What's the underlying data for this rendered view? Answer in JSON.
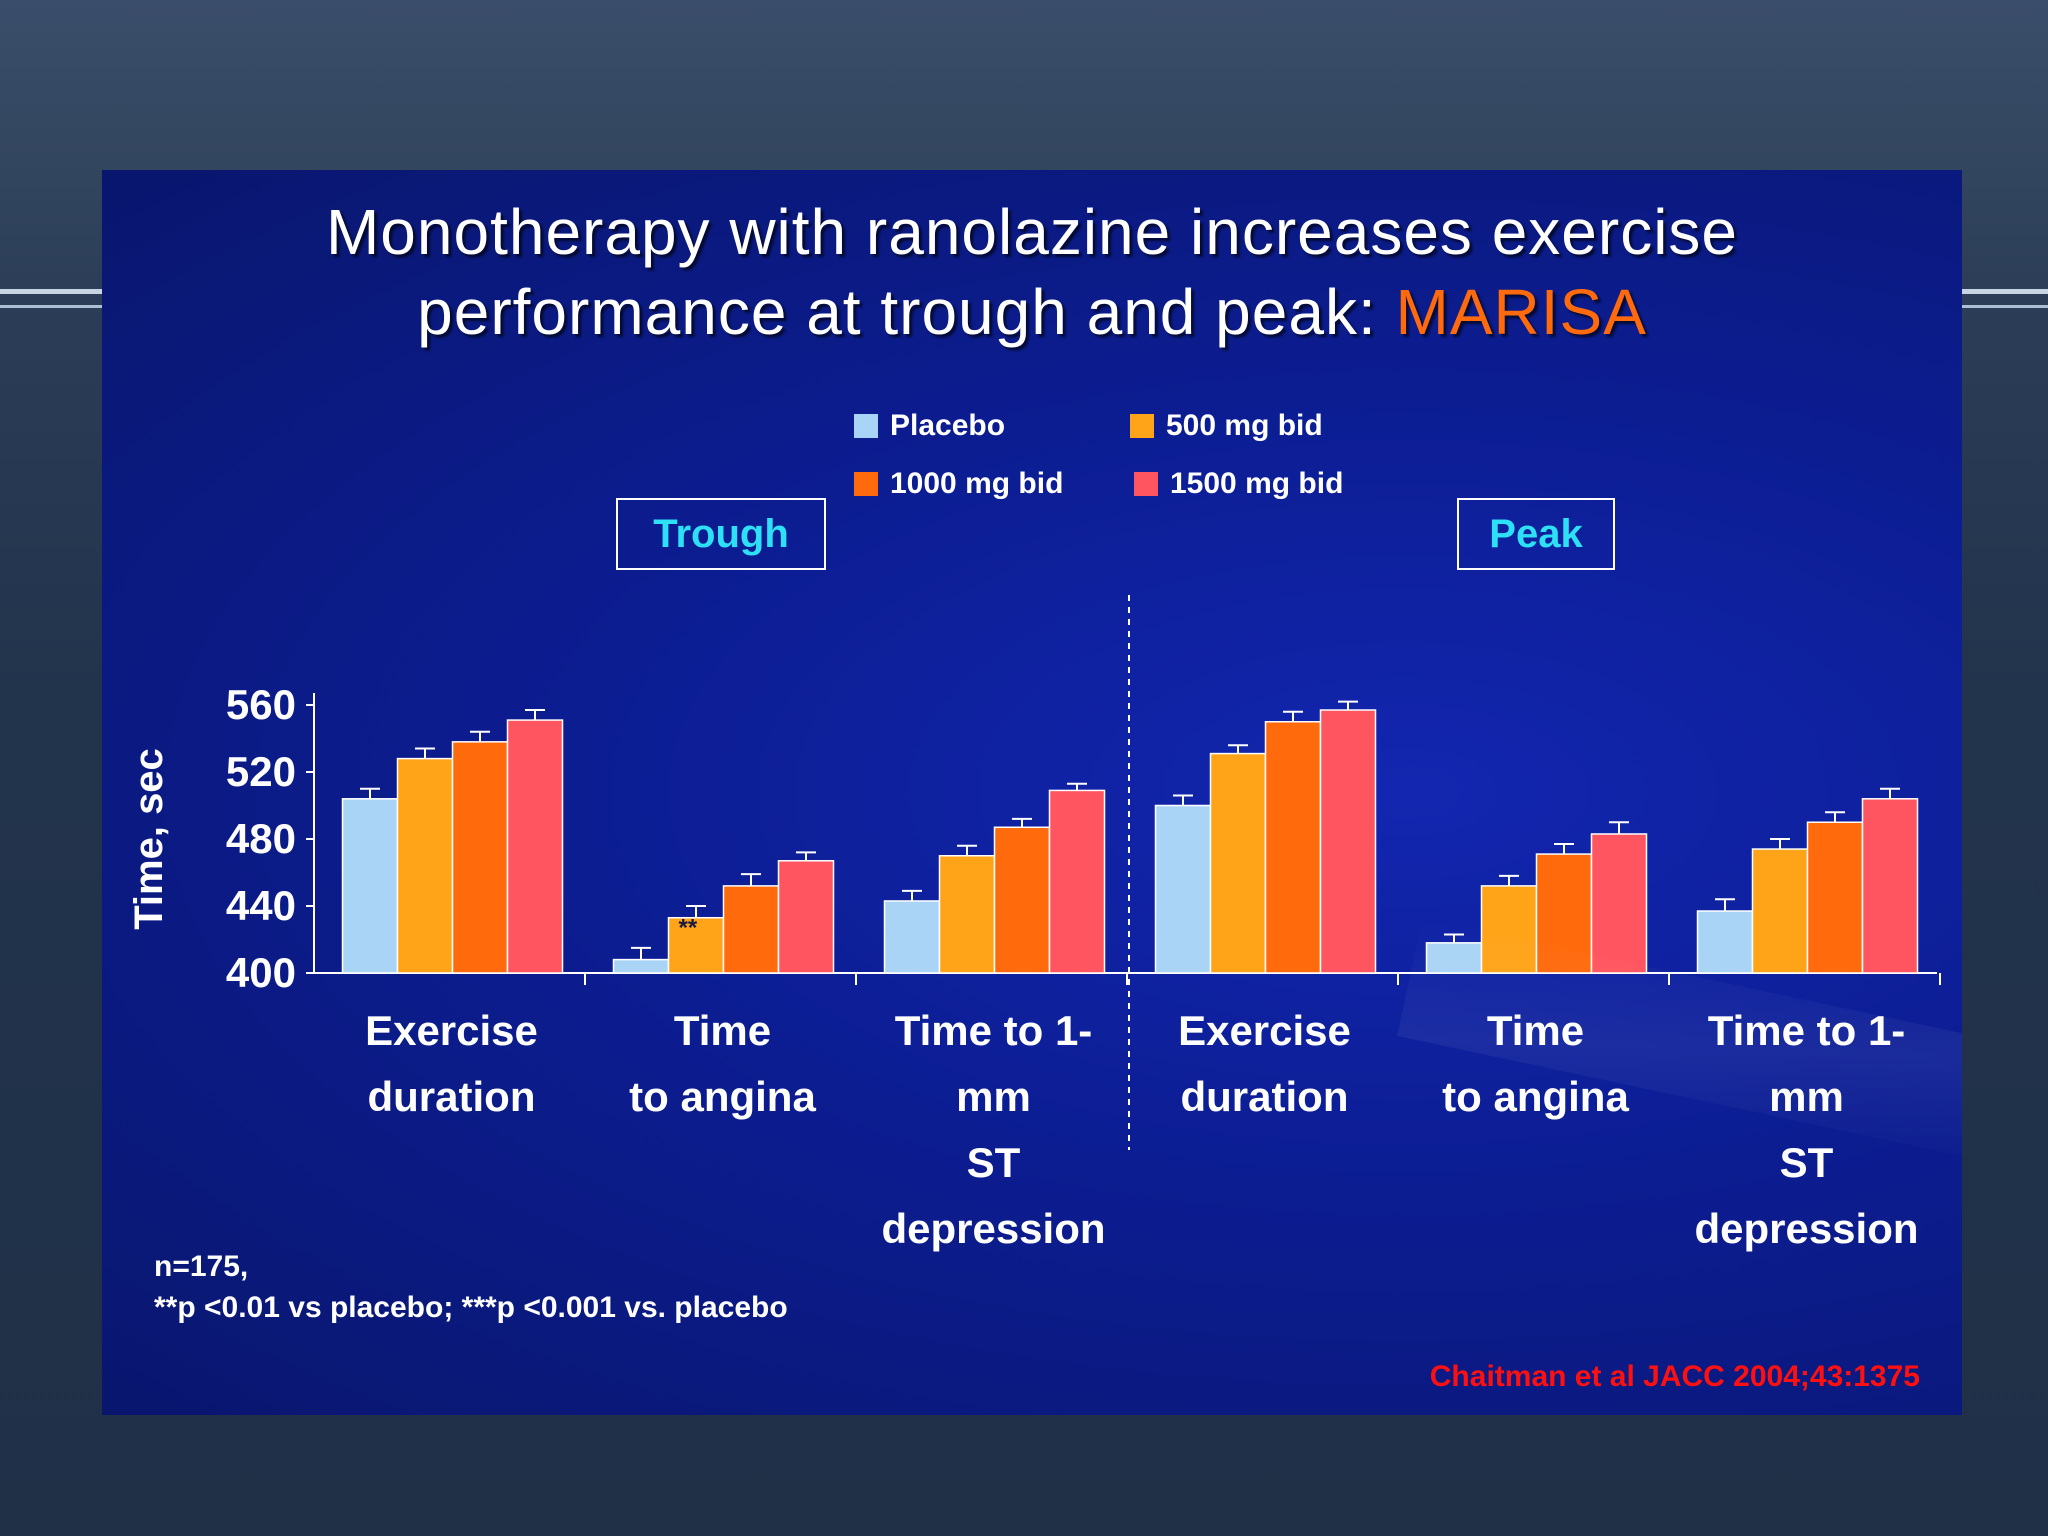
{
  "slide": {
    "title_line1": "Monotherapy with ranolazine increases exercise",
    "title_line2": "performance at trough and peak:",
    "title_accent": "MARISA",
    "panel_labels": [
      "Trough",
      "Peak"
    ],
    "footnote_n": "n=175,",
    "footnote_p": "**p <0.01 vs placebo;  ***p <0.001 vs. placebo",
    "citation": "Chaitman et al JACC 2004;43:1375"
  },
  "colors": {
    "placebo": "#aad4f5",
    "dose500": "#ffa319",
    "dose1000": "#ff6a0d",
    "dose1500": "#ff5560",
    "accent_title": "#ff6a0d",
    "panel_label": "#2de0f6",
    "citation": "#ff1010"
  },
  "chart_data": {
    "type": "bar",
    "ylabel": "Time, sec",
    "ylim": [
      400,
      560
    ],
    "yticks": [
      400,
      440,
      480,
      520,
      560
    ],
    "legend": [
      "Placebo",
      "500 mg bid",
      "1000 mg bid",
      "1500 mg bid"
    ],
    "legend_placement": "top-center",
    "groups": [
      {
        "panel": "Trough",
        "label": [
          "Exercise",
          "duration"
        ],
        "values": [
          504,
          528,
          538,
          551
        ],
        "errors": [
          6,
          6,
          6,
          6
        ]
      },
      {
        "panel": "Trough",
        "label": [
          "Time",
          "to angina"
        ],
        "values": [
          408,
          433,
          452,
          467
        ],
        "errors": [
          7,
          7,
          7,
          5
        ],
        "annotation": "**"
      },
      {
        "panel": "Trough",
        "label": [
          "Time to 1-",
          "mm",
          "ST",
          "depression"
        ],
        "values": [
          443,
          470,
          487,
          509
        ],
        "errors": [
          6,
          6,
          5,
          4
        ]
      },
      {
        "panel": "Peak",
        "label": [
          "Exercise",
          "duration"
        ],
        "values": [
          500,
          531,
          550,
          557
        ],
        "errors": [
          6,
          5,
          6,
          5
        ]
      },
      {
        "panel": "Peak",
        "label": [
          "Time",
          "to angina"
        ],
        "values": [
          418,
          452,
          471,
          483
        ],
        "errors": [
          5,
          6,
          6,
          7
        ]
      },
      {
        "panel": "Peak",
        "label": [
          "Time to 1-",
          "mm",
          "ST",
          "depression"
        ],
        "values": [
          437,
          474,
          490,
          504
        ],
        "errors": [
          7,
          6,
          6,
          6
        ]
      }
    ]
  }
}
